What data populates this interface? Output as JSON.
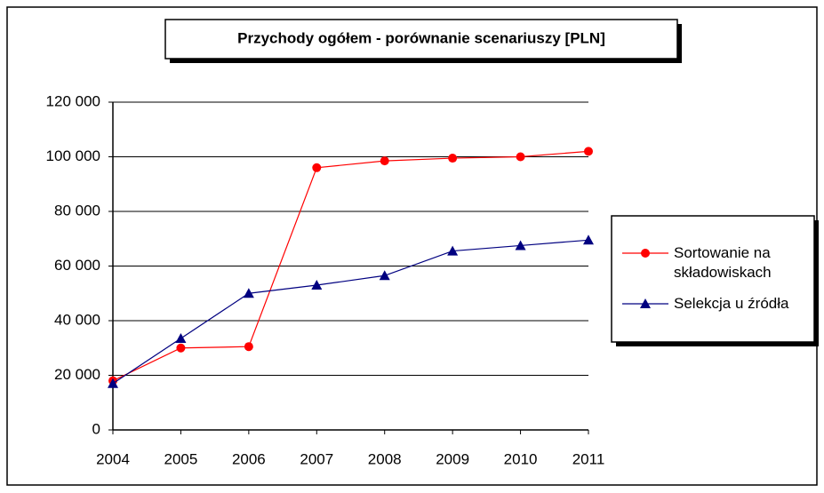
{
  "chart_data": {
    "type": "line",
    "title": "Przychody ogółem - porównanie scenariuszy [PLN]",
    "categories": [
      "2004",
      "2005",
      "2006",
      "2007",
      "2008",
      "2009",
      "2010",
      "2011"
    ],
    "series": [
      {
        "name": "Sortowanie na składowiskach",
        "color": "#ff0000",
        "marker": "circle",
        "values": [
          18000,
          30000,
          30500,
          96000,
          98500,
          99500,
          100000,
          102000
        ]
      },
      {
        "name": "Selekcja u źródła",
        "color": "#000080",
        "marker": "triangle",
        "values": [
          17000,
          33500,
          50000,
          53000,
          56500,
          65500,
          67500,
          69500
        ]
      }
    ],
    "ylim": [
      0,
      120000
    ],
    "yticks": [
      0,
      {
        "value": 20000,
        "label": "20 000"
      },
      {
        "value": 40000,
        "label": "40 000"
      },
      {
        "value": 60000,
        "label": "60 000"
      },
      {
        "value": 80000,
        "label": "80 000"
      },
      {
        "value": 100000,
        "label": "100 000"
      },
      {
        "value": 120000,
        "label": "120 000"
      }
    ],
    "grid": true,
    "legend": "right"
  }
}
